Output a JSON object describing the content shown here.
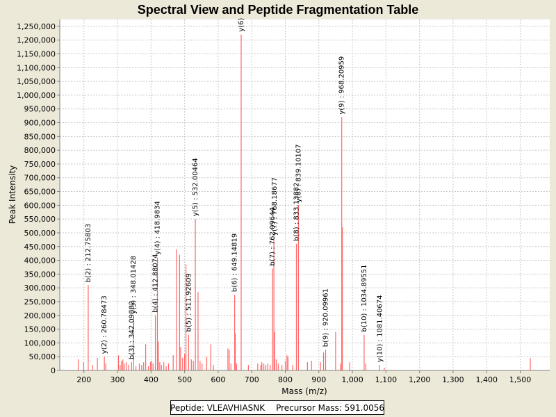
{
  "chart_data": {
    "type": "bar",
    "title": "Spectral View and Peptide Fragmentation Table",
    "xlabel": "Mass (m/z)",
    "ylabel": "Peak Intensity",
    "xlim": [
      128,
      1588
    ],
    "ylim": [
      0,
      1275000
    ],
    "x_ticks": [
      200,
      300,
      400,
      500,
      600,
      700,
      800,
      900,
      1000,
      1100,
      1200,
      1300,
      1400,
      1500
    ],
    "x_tick_labels": [
      "200",
      "300",
      "400",
      "500",
      "600",
      "700",
      "800",
      "900",
      "1,000",
      "1,100",
      "1,200",
      "1,300",
      "1,400",
      "1,500"
    ],
    "y_ticks": [
      0,
      50000,
      100000,
      150000,
      200000,
      250000,
      300000,
      350000,
      400000,
      450000,
      500000,
      550000,
      600000,
      650000,
      700000,
      750000,
      800000,
      850000,
      900000,
      950000,
      1000000,
      1050000,
      1100000,
      1150000,
      1200000,
      1250000
    ],
    "y_tick_labels": [
      "0",
      "50,000",
      "100,000",
      "150,000",
      "200,000",
      "250,000",
      "300,000",
      "350,000",
      "400,000",
      "450,000",
      "500,000",
      "550,000",
      "600,000",
      "650,000",
      "700,000",
      "750,000",
      "800,000",
      "850,000",
      "900,000",
      "950,000",
      "1,000,000",
      "1,050,000",
      "1,100,000",
      "1,150,000",
      "1,200,000",
      "1,250,000"
    ],
    "grid": true,
    "peaks": [
      {
        "mz": 183,
        "intensity": 40000
      },
      {
        "mz": 199,
        "intensity": 30000
      },
      {
        "mz": 212.8,
        "intensity": 310000
      },
      {
        "mz": 226,
        "intensity": 20000
      },
      {
        "mz": 240,
        "intensity": 45000
      },
      {
        "mz": 260.8,
        "intensity": 50000
      },
      {
        "mz": 265,
        "intensity": 25000
      },
      {
        "mz": 303,
        "intensity": 55000
      },
      {
        "mz": 308,
        "intensity": 20000
      },
      {
        "mz": 312,
        "intensity": 35000
      },
      {
        "mz": 316,
        "intensity": 40000
      },
      {
        "mz": 320,
        "intensity": 25000
      },
      {
        "mz": 326,
        "intensity": 30000
      },
      {
        "mz": 333,
        "intensity": 20000
      },
      {
        "mz": 342.1,
        "intensity": 30000
      },
      {
        "mz": 348,
        "intensity": 195000
      },
      {
        "mz": 355,
        "intensity": 15000
      },
      {
        "mz": 365,
        "intensity": 25000
      },
      {
        "mz": 372,
        "intensity": 20000
      },
      {
        "mz": 378,
        "intensity": 30000
      },
      {
        "mz": 384,
        "intensity": 95000
      },
      {
        "mz": 392,
        "intensity": 15000
      },
      {
        "mz": 398,
        "intensity": 30000
      },
      {
        "mz": 402,
        "intensity": 35000
      },
      {
        "mz": 406,
        "intensity": 25000
      },
      {
        "mz": 412.9,
        "intensity": 200000
      },
      {
        "mz": 418.9,
        "intensity": 410000
      },
      {
        "mz": 422,
        "intensity": 105000
      },
      {
        "mz": 426,
        "intensity": 30000
      },
      {
        "mz": 431,
        "intensity": 20000
      },
      {
        "mz": 438,
        "intensity": 30000
      },
      {
        "mz": 445,
        "intensity": 15000
      },
      {
        "mz": 452,
        "intensity": 25000
      },
      {
        "mz": 466,
        "intensity": 55000
      },
      {
        "mz": 476,
        "intensity": 440000
      },
      {
        "mz": 485,
        "intensity": 420000
      },
      {
        "mz": 488,
        "intensity": 85000
      },
      {
        "mz": 494,
        "intensity": 45000
      },
      {
        "mz": 500,
        "intensity": 60000
      },
      {
        "mz": 504,
        "intensity": 385000
      },
      {
        "mz": 511.9,
        "intensity": 130000
      },
      {
        "mz": 520,
        "intensity": 40000
      },
      {
        "mz": 526,
        "intensity": 35000
      },
      {
        "mz": 532,
        "intensity": 550000
      },
      {
        "mz": 540,
        "intensity": 285000
      },
      {
        "mz": 546,
        "intensity": 35000
      },
      {
        "mz": 552,
        "intensity": 25000
      },
      {
        "mz": 566,
        "intensity": 50000
      },
      {
        "mz": 578,
        "intensity": 95000
      },
      {
        "mz": 586,
        "intensity": 20000
      },
      {
        "mz": 629,
        "intensity": 80000
      },
      {
        "mz": 633,
        "intensity": 75000
      },
      {
        "mz": 638,
        "intensity": 25000
      },
      {
        "mz": 649.1,
        "intensity": 275000
      },
      {
        "mz": 651,
        "intensity": 135000
      },
      {
        "mz": 655,
        "intensity": 25000
      },
      {
        "mz": 668.5,
        "intensity": 1220000
      },
      {
        "mz": 690,
        "intensity": 20000
      },
      {
        "mz": 718,
        "intensity": 25000
      },
      {
        "mz": 727,
        "intensity": 20000
      },
      {
        "mz": 730,
        "intensity": 30000
      },
      {
        "mz": 736,
        "intensity": 25000
      },
      {
        "mz": 742,
        "intensity": 20000
      },
      {
        "mz": 748,
        "intensity": 25000
      },
      {
        "mz": 755,
        "intensity": 20000
      },
      {
        "mz": 762.1,
        "intensity": 370000
      },
      {
        "mz": 766,
        "intensity": 480000
      },
      {
        "mz": 768.2,
        "intensity": 140000
      },
      {
        "mz": 773,
        "intensity": 40000
      },
      {
        "mz": 779,
        "intensity": 25000
      },
      {
        "mz": 790,
        "intensity": 20000
      },
      {
        "mz": 800,
        "intensity": 35000
      },
      {
        "mz": 805,
        "intensity": 55000
      },
      {
        "mz": 808,
        "intensity": 50000
      },
      {
        "mz": 822,
        "intensity": 20000
      },
      {
        "mz": 833.1,
        "intensity": 460000
      },
      {
        "mz": 839.1,
        "intensity": 600000
      },
      {
        "mz": 866,
        "intensity": 30000
      },
      {
        "mz": 878,
        "intensity": 35000
      },
      {
        "mz": 905,
        "intensity": 30000
      },
      {
        "mz": 914,
        "intensity": 65000
      },
      {
        "mz": 920.1,
        "intensity": 75000
      },
      {
        "mz": 950,
        "intensity": 140000
      },
      {
        "mz": 964,
        "intensity": 25000
      },
      {
        "mz": 968.2,
        "intensity": 920000
      },
      {
        "mz": 970,
        "intensity": 520000
      },
      {
        "mz": 992,
        "intensity": 30000
      },
      {
        "mz": 1034.9,
        "intensity": 130000
      },
      {
        "mz": 1040,
        "intensity": 25000
      },
      {
        "mz": 1081.4,
        "intensity": 20000
      },
      {
        "mz": 1095,
        "intensity": 10000
      },
      {
        "mz": 1530,
        "intensity": 45000
      }
    ],
    "annotations": [
      {
        "label": "b(2) : 212.75803",
        "mz": 212.8,
        "intensity": 310000
      },
      {
        "label": "y(2) : 260.78473",
        "mz": 260.8,
        "intensity": 50000
      },
      {
        "label": "b(3) : 342.09882",
        "mz": 342.1,
        "intensity": 30000
      },
      {
        "label": "y(3) : 348.01428",
        "mz": 348,
        "intensity": 195000
      },
      {
        "label": "b(4) : 412.88074",
        "mz": 412.9,
        "intensity": 200000
      },
      {
        "label": "y(4) : 418.9834",
        "mz": 418.9,
        "intensity": 410000
      },
      {
        "label": "b(5) : 511.92609",
        "mz": 511.9,
        "intensity": 130000
      },
      {
        "label": "y(5) : 532.00464",
        "mz": 532,
        "intensity": 550000
      },
      {
        "label": "b(6) : 649.14819",
        "mz": 649.1,
        "intensity": 275000
      },
      {
        "label": "y(6)",
        "mz": 668.5,
        "intensity": 1220000
      },
      {
        "label": "b(7) : 762.09644",
        "mz": 762.1,
        "intensity": 370000
      },
      {
        "label": "y(7) : 768.18677",
        "mz": 768.2,
        "intensity": 480000
      },
      {
        "label": "b(8) : 833.13882",
        "mz": 833.1,
        "intensity": 460000
      },
      {
        "label": "y(8) : 839.10107",
        "mz": 839.1,
        "intensity": 600000
      },
      {
        "label": "b(9) : 920.09961",
        "mz": 920.1,
        "intensity": 75000
      },
      {
        "label": "y(9) : 968.20959",
        "mz": 968.2,
        "intensity": 920000
      },
      {
        "label": "b(10) : 1034.89551",
        "mz": 1034.9,
        "intensity": 130000
      },
      {
        "label": "y(10) : 1081.40674",
        "mz": 1081.4,
        "intensity": 20000
      }
    ],
    "colors": {
      "peak": "#ff6666",
      "grid": "#c8c8c8",
      "plot_bg": "#ffffff",
      "page_bg": "#ece9d8"
    }
  },
  "legend": {
    "peptide": "Peptide: VLEAVHIASNK",
    "precursor": "Precursor Mass: 591.0056"
  }
}
